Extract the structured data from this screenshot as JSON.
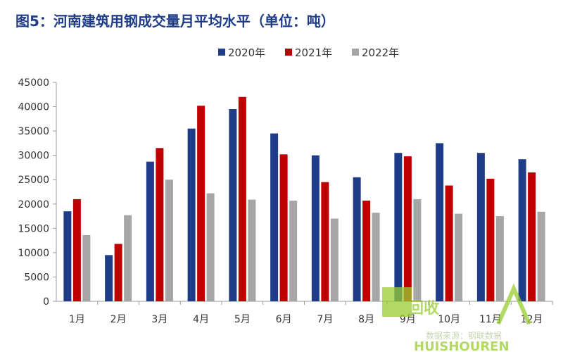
{
  "chart_data": {
    "type": "bar",
    "title": "图5：河南建筑用钢成交量月平均水平（单位：吨）",
    "categories": [
      "1月",
      "2月",
      "3月",
      "4月",
      "5月",
      "6月",
      "7月",
      "8月",
      "9月",
      "10月",
      "11月",
      "12月"
    ],
    "series": [
      {
        "name": "2020年",
        "color": "#1F3C88",
        "values": [
          18500,
          9500,
          28700,
          35500,
          39500,
          34500,
          30000,
          25500,
          30500,
          32500,
          30500,
          29200
        ]
      },
      {
        "name": "2021年",
        "color": "#C00000",
        "values": [
          21000,
          11800,
          31500,
          40200,
          42000,
          30200,
          24500,
          20700,
          29800,
          23800,
          25200,
          26500
        ]
      },
      {
        "name": "2022年",
        "color": "#A6A6A6",
        "values": [
          13600,
          17700,
          25000,
          22200,
          20900,
          20700,
          17000,
          18200,
          21000,
          18000,
          17500,
          18400
        ]
      }
    ],
    "yticks": [
      0,
      5000,
      10000,
      15000,
      20000,
      25000,
      30000,
      35000,
      40000,
      45000
    ],
    "ylim": [
      0,
      45000
    ],
    "legend_position": "top-center",
    "grid": false
  },
  "watermark": {
    "source_text": "数据来源：钢联数据",
    "logo_text": "回收",
    "brand_text": "HUISHOUREN",
    "color": "#9ACD32"
  }
}
